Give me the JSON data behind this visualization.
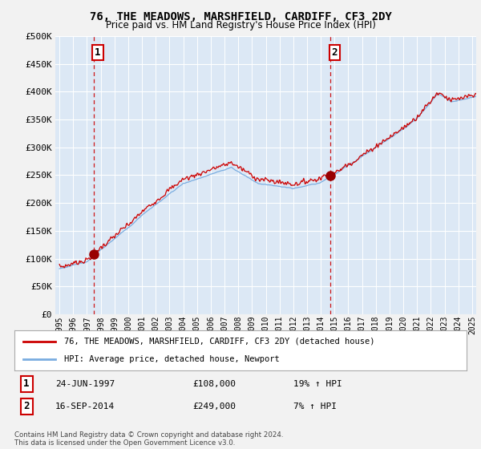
{
  "title": "76, THE MEADOWS, MARSHFIELD, CARDIFF, CF3 2DY",
  "subtitle": "Price paid vs. HM Land Registry's House Price Index (HPI)",
  "ylim": [
    0,
    500000
  ],
  "yticks": [
    0,
    50000,
    100000,
    150000,
    200000,
    250000,
    300000,
    350000,
    400000,
    450000,
    500000
  ],
  "xlim_start": 1994.7,
  "xlim_end": 2025.3,
  "bg_color": "#dce8f5",
  "grid_color": "#ffffff",
  "fig_bg": "#f0f0f0",
  "sale1_date": 1997.48,
  "sale1_price": 108000,
  "sale1_label": "1",
  "sale2_date": 2014.71,
  "sale2_price": 249000,
  "sale2_label": "2",
  "line1_color": "#cc0000",
  "line2_color": "#7aade0",
  "marker_color": "#990000",
  "vline_color": "#cc0000",
  "legend_line1": "76, THE MEADOWS, MARSHFIELD, CARDIFF, CF3 2DY (detached house)",
  "legend_line2": "HPI: Average price, detached house, Newport",
  "annotation1_date": "24-JUN-1997",
  "annotation1_price": "£108,000",
  "annotation1_hpi": "19% ↑ HPI",
  "annotation2_date": "16-SEP-2014",
  "annotation2_price": "£249,000",
  "annotation2_hpi": "7% ↑ HPI",
  "footer": "Contains HM Land Registry data © Crown copyright and database right 2024.\nThis data is licensed under the Open Government Licence v3.0."
}
